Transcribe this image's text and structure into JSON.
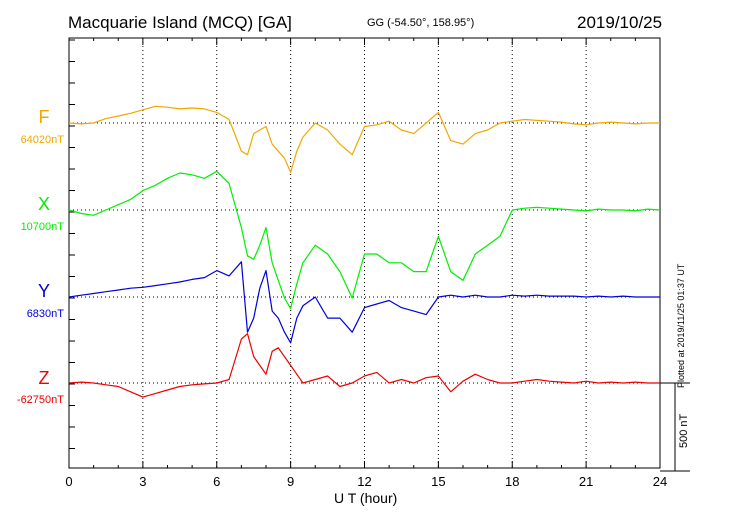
{
  "header": {
    "title": "Macquarie Island (MCQ)  [GA]",
    "coords": "GG (-54.50°, 158.95°)",
    "date": "2019/10/25"
  },
  "footer": {
    "plotted": "Plotted at 2019/11/25 01:37 UT"
  },
  "scale_bar": {
    "label": "500 nT",
    "value_nT": 500
  },
  "chart_data": {
    "type": "line",
    "xlabel": "U T (hour)",
    "xlim": [
      0,
      24
    ],
    "xticks": [
      "0",
      "3",
      "6",
      "9",
      "12",
      "15",
      "18",
      "21",
      "24"
    ],
    "x": [
      0,
      0.5,
      1,
      1.5,
      2,
      2.5,
      3,
      3.5,
      4,
      4.5,
      5,
      5.5,
      6,
      6.5,
      7,
      7.25,
      7.5,
      7.75,
      8,
      8.25,
      8.5,
      8.75,
      9,
      9.25,
      9.5,
      10,
      10.5,
      11,
      11.5,
      12,
      12.5,
      13,
      13.5,
      14,
      14.5,
      15,
      15.5,
      16,
      16.5,
      17,
      17.5,
      18,
      18.5,
      19,
      19.5,
      20,
      20.5,
      21,
      21.5,
      22,
      22.5,
      23,
      23.5,
      24
    ],
    "series": [
      {
        "name": "F",
        "baseline": "64020nT",
        "color": "#f0a800",
        "values": [
          0,
          -5,
          0,
          25,
          40,
          55,
          75,
          95,
          90,
          80,
          85,
          80,
          60,
          20,
          -160,
          -180,
          -60,
          -40,
          -20,
          -120,
          -160,
          -200,
          -280,
          -160,
          -80,
          0,
          -40,
          -120,
          -180,
          -20,
          -10,
          10,
          -40,
          -60,
          0,
          60,
          -100,
          -120,
          -60,
          -40,
          0,
          10,
          20,
          15,
          10,
          5,
          -5,
          -10,
          0,
          5,
          0,
          -5,
          0,
          0
        ]
      },
      {
        "name": "X",
        "baseline": "10700nT",
        "color": "#00ee00",
        "values": [
          0,
          -20,
          -30,
          0,
          30,
          60,
          110,
          140,
          180,
          210,
          200,
          180,
          220,
          150,
          -100,
          -260,
          -280,
          -200,
          -100,
          -300,
          -400,
          -500,
          -560,
          -420,
          -300,
          -200,
          -250,
          -350,
          -500,
          -250,
          -250,
          -300,
          -300,
          -350,
          -350,
          -150,
          -350,
          -400,
          -250,
          -200,
          -150,
          0,
          10,
          15,
          10,
          5,
          0,
          -5,
          5,
          0,
          0,
          -5,
          5,
          0
        ]
      },
      {
        "name": "Y",
        "baseline": "6830nT",
        "color": "#0000dd",
        "values": [
          0,
          10,
          20,
          30,
          40,
          50,
          55,
          65,
          75,
          85,
          100,
          110,
          150,
          120,
          200,
          -200,
          -120,
          50,
          150,
          -80,
          -120,
          -200,
          -260,
          -120,
          -50,
          0,
          -120,
          -120,
          -200,
          -60,
          -40,
          -20,
          -60,
          -80,
          -100,
          0,
          10,
          0,
          10,
          0,
          0,
          10,
          5,
          10,
          5,
          5,
          5,
          0,
          5,
          0,
          5,
          0,
          0,
          0
        ]
      },
      {
        "name": "Z",
        "baseline": "-62750nT",
        "color": "#ee0000",
        "values": [
          0,
          5,
          0,
          -10,
          -20,
          -50,
          -80,
          -60,
          -40,
          -20,
          -10,
          -5,
          0,
          20,
          250,
          280,
          150,
          100,
          50,
          180,
          200,
          150,
          100,
          50,
          0,
          20,
          40,
          -20,
          0,
          40,
          60,
          0,
          20,
          0,
          30,
          40,
          -50,
          10,
          50,
          20,
          0,
          0,
          10,
          20,
          10,
          5,
          0,
          10,
          0,
          5,
          0,
          5,
          0,
          0
        ]
      }
    ]
  }
}
